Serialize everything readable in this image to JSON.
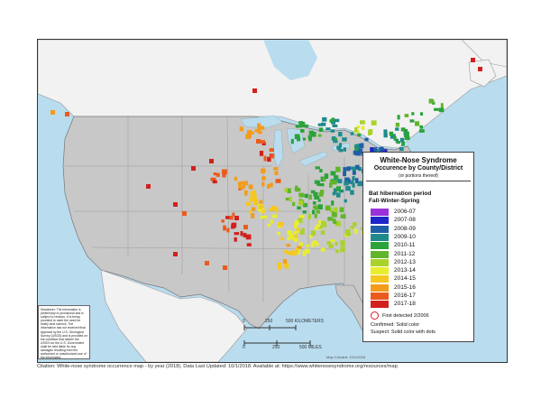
{
  "legend": {
    "title": "White-Nose Syndrome",
    "subtitle": "Occurence by County/District",
    "note": "(or portions thereof)",
    "period_line1": "Bat hibernation period",
    "period_line2": "Fall-Winter-Spring",
    "items": [
      {
        "label": "2006-07",
        "color": "#9b30d9"
      },
      {
        "label": "2007-08",
        "color": "#1e26c8"
      },
      {
        "label": "2008-09",
        "color": "#1f5fa8"
      },
      {
        "label": "2009-10",
        "color": "#1f8a8c"
      },
      {
        "label": "2010-11",
        "color": "#2ba33a"
      },
      {
        "label": "2011-12",
        "color": "#61b52a"
      },
      {
        "label": "2012-13",
        "color": "#a9d22b"
      },
      {
        "label": "2013-14",
        "color": "#e8ee2d"
      },
      {
        "label": "2014-15",
        "color": "#f6c81f"
      },
      {
        "label": "2015-16",
        "color": "#f39c1c"
      },
      {
        "label": "2016-17",
        "color": "#ea5b1d"
      },
      {
        "label": "2017-18",
        "color": "#d2201e"
      }
    ],
    "first_detected": "First detected 2/2006",
    "confirmed": "Confirmed:  Solid color",
    "suspect": "Suspect:  Solid color with dots"
  },
  "disclaimer": "Disclaimer: The information is preliminary or provisional and is subject to revision. It is being provided to meet the need for timely best science. The information has not received final approval by the U.S. Geological Survey (USGS) and is provided on the condition that neither the USGS nor the U.S. Government shall be held liable for any damages resulting from the authorized or unauthorized use of the information.",
  "scale": {
    "km_0": "0",
    "km_250": "250",
    "km_500": "500 KILOMETERS",
    "mi_0": "0",
    "mi_250": "250",
    "mi_500": "500 MILES"
  },
  "map_created": "Map Created: 10/1/2018",
  "citation": "Citation: White-nose syndrome occurrence map - by year (2018). Data Last Updated: 10/1/2018. Available at: https://www.whitenosesyndrome.org/resources/map.",
  "colors": {
    "water": "#b9dcef",
    "us_land": "#c8c8c8",
    "canada_land": "#f2f2f2",
    "border": "#8a8a8a"
  }
}
